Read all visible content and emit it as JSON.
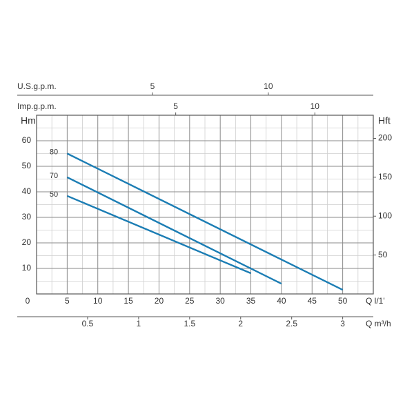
{
  "chart_data": {
    "type": "line",
    "x_label": "Q l/1'",
    "y_label": "Hm",
    "y2_label": "Hft",
    "xlim": [
      0,
      55
    ],
    "xticks": [
      0,
      5,
      10,
      15,
      20,
      25,
      30,
      35,
      40,
      45,
      50
    ],
    "minor_xticks": [
      2.5,
      7.5,
      12.5,
      17.5,
      22.5,
      27.5,
      32.5,
      37.5,
      42.5,
      47.5,
      52.5
    ],
    "ylim": [
      0,
      70
    ],
    "yticks": [
      10,
      20,
      30,
      40,
      50,
      60
    ],
    "minor_yticks": [
      5,
      15,
      25,
      35,
      45,
      55,
      65
    ],
    "y2lim": [
      0,
      229.7
    ],
    "y2ticks": [
      50,
      100,
      150,
      200
    ],
    "grid": true,
    "extra_x_axes": [
      {
        "label": "Q m³/h",
        "position": "bottom",
        "lim": [
          0,
          3.3
        ],
        "ticks": [
          0.5,
          1,
          1.5,
          2,
          2.5,
          3
        ]
      },
      {
        "label": "U.S.g.p.m.",
        "position": "top",
        "lim": [
          0,
          14.53
        ],
        "ticks": [
          5,
          10
        ]
      },
      {
        "label": "Imp.g.p.m.",
        "position": "top",
        "lim": [
          0,
          12.1
        ],
        "ticks": [
          5,
          10
        ]
      }
    ],
    "series": [
      {
        "name": "80",
        "color": "#1b7db4",
        "x": [
          5,
          50
        ],
        "values": [
          55,
          1.6
        ]
      },
      {
        "name": "70",
        "color": "#1b7db4",
        "x": [
          5,
          40
        ],
        "values": [
          45.7,
          4
        ]
      },
      {
        "name": "50",
        "color": "#1b7db4",
        "x": [
          5,
          35
        ],
        "values": [
          38.4,
          8.1
        ]
      }
    ]
  }
}
